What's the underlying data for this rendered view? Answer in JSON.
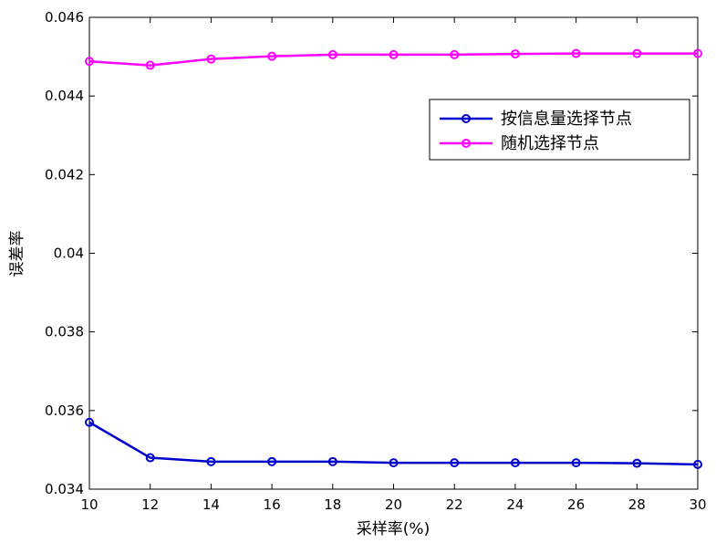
{
  "chart_data": {
    "type": "line",
    "xlabel": "采样率(%)",
    "ylabel": "误差率",
    "xlim": [
      10,
      30
    ],
    "ylim": [
      0.034,
      0.046
    ],
    "x_ticks": [
      "10",
      "12",
      "14",
      "16",
      "18",
      "20",
      "22",
      "24",
      "26",
      "28",
      "30"
    ],
    "y_ticks": [
      "0.034",
      "0.036",
      "0.038",
      "0.04",
      "0.042",
      "0.044",
      "0.046"
    ],
    "grid": false,
    "legend_position": "top-right",
    "x": [
      10,
      12,
      14,
      16,
      18,
      20,
      22,
      24,
      26,
      28,
      30
    ],
    "series": [
      {
        "name": "按信息量选择节点",
        "color": "#0000cc",
        "marker": "circle",
        "values": [
          0.0357,
          0.0348,
          0.0347,
          0.0347,
          0.0347,
          0.03467,
          0.03467,
          0.03467,
          0.03467,
          0.03466,
          0.03463
        ]
      },
      {
        "name": "随机选择节点",
        "color": "#ff00ff",
        "marker": "circle",
        "values": [
          0.04488,
          0.04478,
          0.04494,
          0.04501,
          0.04505,
          0.04505,
          0.04505,
          0.04507,
          0.04508,
          0.04508,
          0.04508
        ]
      }
    ]
  }
}
